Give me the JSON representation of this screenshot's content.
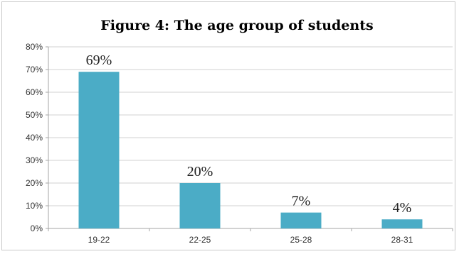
{
  "chart_data": {
    "type": "bar",
    "title": "Figure 4: The age group of students",
    "categories": [
      "19-22",
      "22-25",
      "25-28",
      "28-31"
    ],
    "values": [
      69,
      20,
      7,
      4
    ],
    "data_labels": [
      "69%",
      "20%",
      "7%",
      "4%"
    ],
    "yticks": [
      "0%",
      "10%",
      "20%",
      "30%",
      "40%",
      "50%",
      "60%",
      "70%",
      "80%"
    ],
    "ylim": [
      0,
      80
    ],
    "xlabel": "",
    "ylabel": "",
    "grid": true,
    "legend": "none",
    "bar_color": "#4bacc6",
    "grid_color": "#d0d0d0"
  }
}
